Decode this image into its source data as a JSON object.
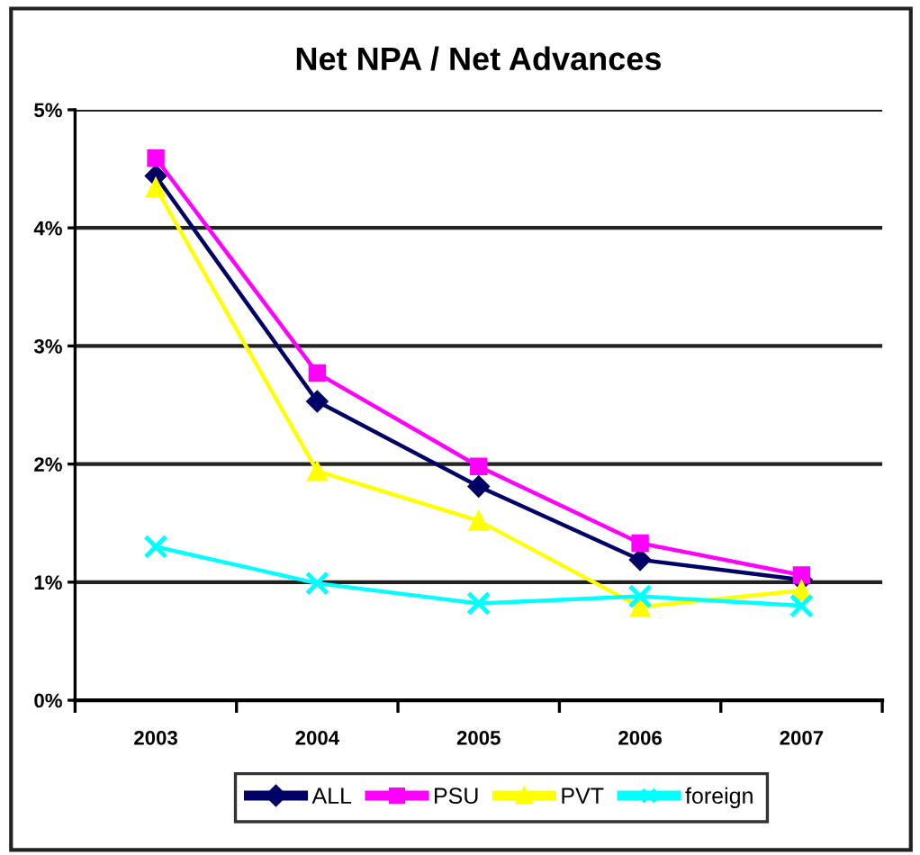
{
  "chart_data": {
    "type": "line",
    "title": "Net NPA / Net Advances",
    "categories": [
      "2003",
      "2004",
      "2005",
      "2006",
      "2007"
    ],
    "series": [
      {
        "name": "ALL",
        "color": "#000066",
        "marker": "diamond",
        "values": [
          4.44,
          2.53,
          1.81,
          1.19,
          1.02
        ]
      },
      {
        "name": "PSU",
        "color": "#ff00ff",
        "marker": "square",
        "values": [
          4.59,
          2.77,
          1.98,
          1.33,
          1.06
        ]
      },
      {
        "name": "PVT",
        "color": "#ffff00",
        "marker": "triangle",
        "values": [
          4.34,
          1.94,
          1.52,
          0.79,
          0.93
        ]
      },
      {
        "name": "foreign",
        "color": "#00ffff",
        "marker": "cross",
        "values": [
          1.3,
          0.99,
          0.82,
          0.88,
          0.8
        ]
      }
    ],
    "ylim": [
      0,
      5
    ],
    "yticks": [
      {
        "value": 0,
        "label": "0%"
      },
      {
        "value": 1,
        "label": "1%"
      },
      {
        "value": 2,
        "label": "2%"
      },
      {
        "value": 3,
        "label": "3%"
      },
      {
        "value": 4,
        "label": "4%"
      },
      {
        "value": 5,
        "label": "5%"
      }
    ],
    "grid": "y",
    "legend": "bottom",
    "line_style": "solid"
  }
}
